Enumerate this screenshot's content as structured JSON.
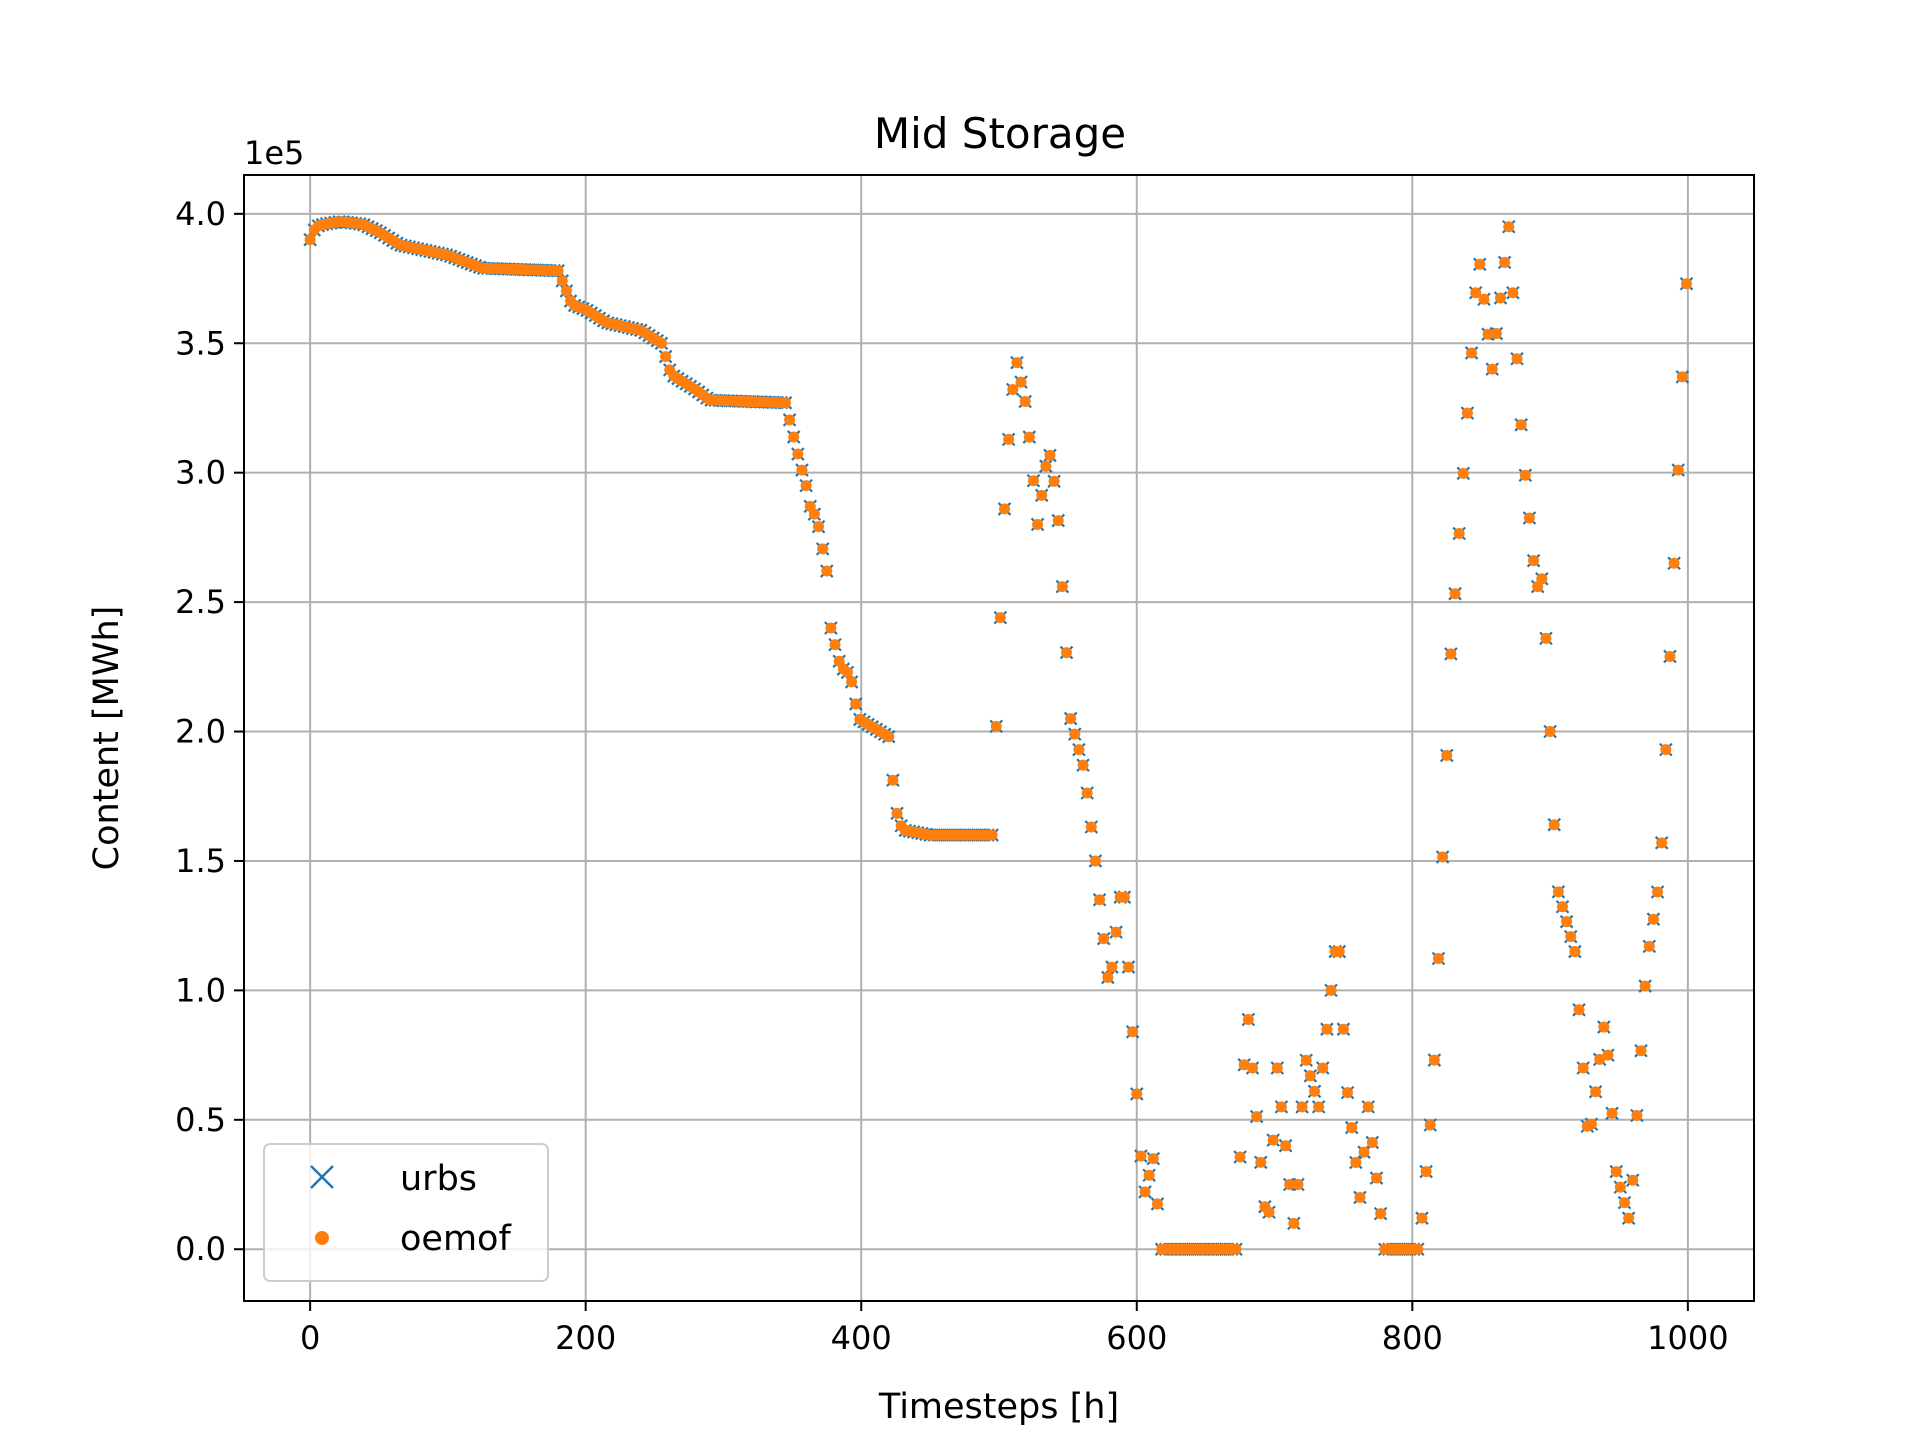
{
  "chart_data": {
    "type": "scatter",
    "title": "Mid Storage",
    "xlabel": "Timesteps [h]",
    "ylabel": "Content [MWh]",
    "y_offset_text": "1e5",
    "xlim": [
      -48,
      1048
    ],
    "ylim": [
      -20000,
      415000
    ],
    "xticks": [
      0,
      200,
      400,
      600,
      800,
      1000
    ],
    "xtick_labels": [
      "0",
      "200",
      "400",
      "600",
      "800",
      "1000"
    ],
    "yticks": [
      0,
      50000,
      100000,
      150000,
      200000,
      250000,
      300000,
      350000,
      400000
    ],
    "ytick_labels": [
      "0.0",
      "0.5",
      "1.0",
      "1.5",
      "2.0",
      "2.5",
      "3.0",
      "3.5",
      "4.0"
    ],
    "grid": true,
    "legend_position": "lower-left",
    "colors": {
      "urbs": "#1f77b4",
      "oemof": "#ff7f0e"
    },
    "series": [
      {
        "name": "urbs",
        "marker": "x"
      },
      {
        "name": "oemof",
        "marker": "dot"
      }
    ],
    "x_step": 3,
    "trajectory": [
      [
        0,
        390000
      ],
      [
        4,
        395000
      ],
      [
        10,
        396000
      ],
      [
        22,
        397000
      ],
      [
        38,
        396000
      ],
      [
        50,
        393000
      ],
      [
        65,
        388000
      ],
      [
        100,
        384000
      ],
      [
        125,
        379000
      ],
      [
        180,
        378000
      ],
      [
        190,
        365000
      ],
      [
        200,
        363000
      ],
      [
        215,
        358000
      ],
      [
        240,
        355000
      ],
      [
        255,
        350000
      ],
      [
        262,
        338000
      ],
      [
        280,
        332000
      ],
      [
        290,
        328000
      ],
      [
        345,
        327000
      ],
      [
        355,
        305000
      ],
      [
        360,
        295000
      ],
      [
        362,
        288000
      ],
      [
        368,
        282000
      ],
      [
        375,
        262000
      ],
      [
        378,
        240000
      ],
      [
        385,
        225000
      ],
      [
        392,
        222000
      ],
      [
        398,
        205000
      ],
      [
        420,
        198000
      ],
      [
        425,
        170000
      ],
      [
        430,
        162000
      ],
      [
        450,
        160000
      ],
      [
        495,
        160000
      ],
      [
        505,
        300000
      ],
      [
        512,
        345000
      ],
      [
        520,
        325000
      ],
      [
        528,
        280000
      ],
      [
        536,
        310000
      ],
      [
        542,
        290000
      ],
      [
        552,
        205000
      ],
      [
        562,
        185000
      ],
      [
        570,
        150000
      ],
      [
        580,
        100000
      ],
      [
        590,
        145000
      ],
      [
        595,
        100000
      ],
      [
        605,
        20000
      ],
      [
        612,
        35000
      ],
      [
        618,
        0
      ],
      [
        672,
        0
      ],
      [
        680,
        95000
      ],
      [
        688,
        45000
      ],
      [
        695,
        5000
      ],
      [
        702,
        70000
      ],
      [
        708,
        40000
      ],
      [
        715,
        5000
      ],
      [
        722,
        75000
      ],
      [
        732,
        55000
      ],
      [
        746,
        125000
      ],
      [
        752,
        65000
      ],
      [
        762,
        20000
      ],
      [
        768,
        55000
      ],
      [
        780,
        0
      ],
      [
        805,
        0
      ],
      [
        815,
        60000
      ],
      [
        828,
        230000
      ],
      [
        848,
        385000
      ],
      [
        858,
        340000
      ],
      [
        870,
        395000
      ],
      [
        880,
        310000
      ],
      [
        890,
        255000
      ],
      [
        895,
        260000
      ],
      [
        905,
        140000
      ],
      [
        918,
        115000
      ],
      [
        928,
        40000
      ],
      [
        940,
        90000
      ],
      [
        948,
        30000
      ],
      [
        958,
        10000
      ],
      [
        970,
        110000
      ],
      [
        980,
        145000
      ],
      [
        1000,
        385000
      ]
    ]
  },
  "legend": {
    "labels": [
      "urbs",
      "oemof"
    ]
  }
}
